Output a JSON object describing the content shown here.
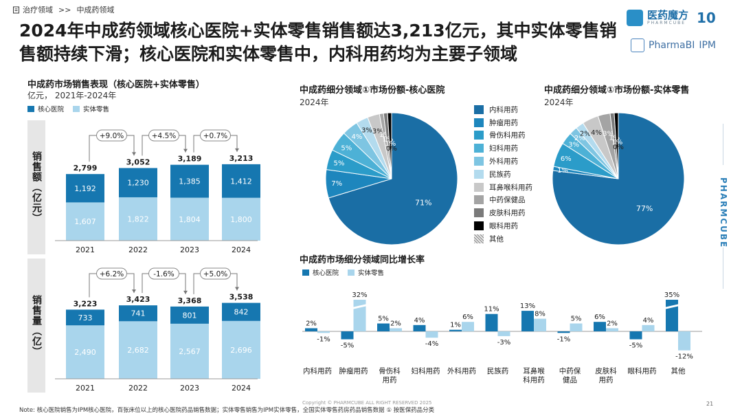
{
  "breadcrumb": {
    "level1": "治疗领域",
    "separator": ">>",
    "level2": "中成药领域"
  },
  "title": "2024年中成药领域核心医院+实体零售销售额达3,213亿元，其中实体零售销售额持续下滑；核心医院和实体零售中，内科用药均为主要子领域",
  "brand": {
    "logo_name": "医药魔方",
    "logo_sub": "PHARMCUBE",
    "logo_badge": "10",
    "pbi": "PharmaBI",
    "pbi_ipm": "IPM",
    "side": "PHARMCUBE"
  },
  "colors": {
    "core": "#1677b0",
    "retail": "#a9d5ec"
  },
  "left_panel": {
    "title_prefix": "中成药市场销售表现（",
    "title_highlight": "核心医院+实体零售",
    "title_suffix": "）",
    "unit": "亿元， 2021年-2024年",
    "legend_core": "核心医院",
    "legend_retail": "实体零售"
  },
  "pie_core_title": "中成药细分领域①市场份额-核心医院",
  "pie_retail_title": "中成药细分领域①市场份额-实体零售",
  "pie_year": "2024年",
  "growth_title": "中成药市场细分领域同比增长率",
  "chart_data": [
    {
      "type": "bar",
      "title": "销售额（亿元）",
      "stacked": true,
      "categories": [
        "2021",
        "2022",
        "2023",
        "2024"
      ],
      "series": [
        {
          "name": "实体零售",
          "values": [
            1607,
            1822,
            1804,
            1800
          ]
        },
        {
          "name": "核心医院",
          "values": [
            1192,
            1230,
            1385,
            1412
          ]
        }
      ],
      "totals": [
        "2,799",
        "3,052",
        "3,189",
        "3,213"
      ],
      "seg_labels": {
        "core": [
          "1,192",
          "1,230",
          "1,385",
          "1,412"
        ],
        "retail": [
          "1,607",
          "1,822",
          "1,804",
          "1,800"
        ]
      },
      "growth_labels": [
        "+9.0%",
        "+4.5%",
        "+0.7%"
      ],
      "ylabel": "销售额（亿元）"
    },
    {
      "type": "bar",
      "title": "销售量（亿）",
      "stacked": true,
      "categories": [
        "2021",
        "2022",
        "2023",
        "2024"
      ],
      "series": [
        {
          "name": "实体零售",
          "values": [
            2490,
            2682,
            2567,
            2696
          ]
        },
        {
          "name": "核心医院",
          "values": [
            733,
            741,
            801,
            842
          ]
        }
      ],
      "totals": [
        "3,223",
        "3,423",
        "3,368",
        "3,538"
      ],
      "seg_labels": {
        "core": [
          "733",
          "741",
          "801",
          "842"
        ],
        "retail": [
          "2,490",
          "2,682",
          "2,567",
          "2,696"
        ]
      },
      "growth_labels": [
        "+6.2%",
        "-1.6%",
        "+5.0%"
      ],
      "ylabel": "销售量（亿）"
    },
    {
      "type": "pie",
      "title": "中成药细分领域①市场份额-核心医院 2024年",
      "labels": [
        "内科用药",
        "肿瘤用药",
        "骨伤科用药",
        "妇科用药",
        "外科用药",
        "民族药",
        "耳鼻喉科用药",
        "中药保健品",
        "皮肤科用药",
        "眼科用药",
        "其他"
      ],
      "values": [
        71,
        7,
        5,
        5,
        4,
        3,
        3,
        1,
        1,
        1,
        0
      ],
      "display": [
        "71%",
        "7%",
        "5%",
        "5%",
        "4%",
        "3%",
        "3%",
        "1%",
        "1%",
        "1%",
        "0%"
      ]
    },
    {
      "type": "pie",
      "title": "中成药细分领域①市场份额-实体零售 2024年",
      "labels": [
        "内科用药",
        "肿瘤用药",
        "骨伤科用药",
        "妇科用药",
        "外科用药",
        "民族药",
        "耳鼻喉科用药",
        "中药保健品",
        "皮肤科用药",
        "眼科用药",
        "其他"
      ],
      "values": [
        77,
        1,
        6,
        3,
        2,
        2,
        4,
        3,
        1,
        1,
        0
      ],
      "display": [
        "77%",
        "1%",
        "6%",
        "3%",
        "2%",
        "2%",
        "4%",
        "3%",
        "1%",
        "1%",
        "0%"
      ]
    },
    {
      "type": "bar",
      "title": "中成药市场细分领域同比增长率",
      "categories": [
        "内科用药",
        "肿瘤用药",
        "骨伤科用药",
        "妇科用药",
        "外科用药",
        "民族药",
        "耳鼻喉科用药",
        "中药保健品",
        "皮肤科用药",
        "眼科用药",
        "其他"
      ],
      "category_lines": [
        [
          "内科用药"
        ],
        [
          "肿瘤用药"
        ],
        [
          "骨伤科",
          "用药"
        ],
        [
          "妇科用药"
        ],
        [
          "外科用药"
        ],
        [
          "民族药"
        ],
        [
          "耳鼻喉",
          "科用药"
        ],
        [
          "中药保",
          "健品"
        ],
        [
          "皮肤科",
          "用药"
        ],
        [
          "眼科用药"
        ],
        [
          "其他"
        ]
      ],
      "series": [
        {
          "name": "核心医院",
          "values": [
            2,
            -5,
            5,
            4,
            1,
            11,
            13,
            -1,
            6,
            -5,
            35
          ],
          "labels": [
            "2%",
            "-5%",
            "5%",
            "4%",
            "1%",
            "11%",
            "13%",
            "-1%",
            "6%",
            "-5%",
            "35%"
          ]
        },
        {
          "name": "实体零售",
          "values": [
            -1,
            32,
            2,
            -4,
            6,
            -3,
            8,
            5,
            2,
            4,
            -12
          ],
          "labels": [
            "-1%",
            "32%",
            "2%",
            "-4%",
            "6%",
            "-3%",
            "8%",
            "5%",
            "2%",
            "4%",
            "-12%"
          ]
        }
      ],
      "ylabel": "%"
    }
  ],
  "pie_legend": {
    "labels": [
      "内科用药",
      "肿瘤用药",
      "骨伤科用药",
      "妇科用药",
      "外科用药",
      "民族药",
      "耳鼻喉科用药",
      "中药保健品",
      "皮肤科用药",
      "眼科用药",
      "其他"
    ],
    "colors": [
      "#1a6ea5",
      "#1d86bd",
      "#2b9cc9",
      "#4db1d6",
      "#7ec5e2",
      "#b3dbee",
      "#c8c8c8",
      "#a4a4a4",
      "#7a7a7a",
      "#000000",
      "#d9d9d9"
    ]
  },
  "footnote": "Note: 核心医院销售为IPM核心医院，百张床位以上的核心医院药品销售数据；实体零售销售为IPM实体零售，全国实体零售药房药品销售数据 ① 按医保药品分类",
  "copyright": "Copyright © PHARMCUBE ALL RIGHT RESERVED 2025",
  "page_number": "21"
}
